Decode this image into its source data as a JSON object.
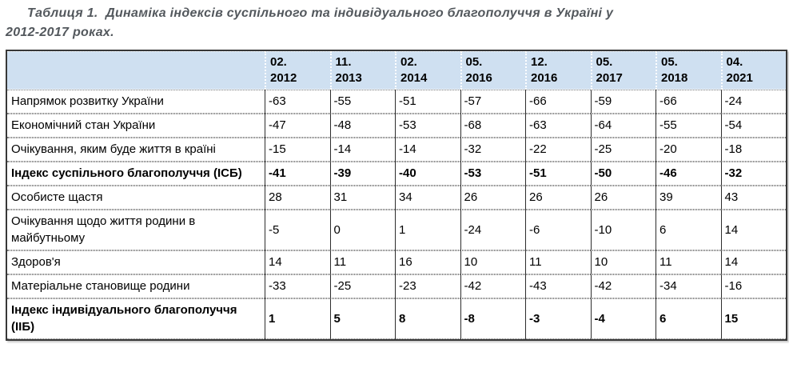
{
  "title": "Таблиця 1.  Динаміка індексів суспільного та індивідуального благополуччя в Україні у\n2012-2017 роках.",
  "colors": {
    "header_bg": "#cfe0f1",
    "outer_border": "#383838",
    "title_text": "#53585d",
    "row_separator_dotted": "#7a7a7a"
  },
  "table": {
    "corner_label": "",
    "columns": [
      "02.\n2012",
      "11.\n2013",
      "02.\n2014",
      "05.\n2016",
      "12.\n2016",
      "05.\n2017",
      "05.\n2018",
      "04.\n2021"
    ],
    "rows": [
      {
        "label": "Напрямок розвитку України",
        "bold": false,
        "values": [
          "-63",
          "-55",
          "-51",
          "-57",
          "-66",
          "-59",
          "-66",
          "-24"
        ]
      },
      {
        "label": "Економічний стан України",
        "bold": false,
        "values": [
          "-47",
          "-48",
          "-53",
          "-68",
          "-63",
          "-64",
          "-55",
          "-54"
        ]
      },
      {
        "label": "Очікування, яким буде життя в країні",
        "bold": false,
        "values": [
          "-15",
          "-14",
          "-14",
          "-32",
          "-22",
          "-25",
          "-20",
          "-18"
        ]
      },
      {
        "label": "Індекс суспільного благополуччя (ІСБ)",
        "bold": true,
        "values": [
          "-41",
          "-39",
          "-40",
          "-53",
          "-51",
          "-50",
          "-46",
          "-32"
        ]
      },
      {
        "label": "Особисте щастя",
        "bold": false,
        "values": [
          "28",
          "31",
          "34",
          "26",
          "26",
          "26",
          "39",
          "43"
        ]
      },
      {
        "label": "Очікування щодо життя родини в майбутньому",
        "bold": false,
        "values": [
          "-5",
          "0",
          "1",
          "-24",
          "-6",
          "-10",
          "6",
          "14"
        ]
      },
      {
        "label": "Здоров'я",
        "bold": false,
        "values": [
          "14",
          "11",
          "16",
          "10",
          "11",
          "10",
          "11",
          "14"
        ]
      },
      {
        "label": "Матеріальне становище родини",
        "bold": false,
        "values": [
          "-33",
          "-25",
          "-23",
          "-42",
          "-43",
          "-42",
          "-34",
          "-16"
        ]
      },
      {
        "label": "Індекс індивідуального благополуччя (ІІБ)",
        "bold": true,
        "values": [
          "1",
          "5",
          "8",
          "-8",
          "-3",
          "-4",
          "6",
          "15"
        ]
      }
    ]
  }
}
